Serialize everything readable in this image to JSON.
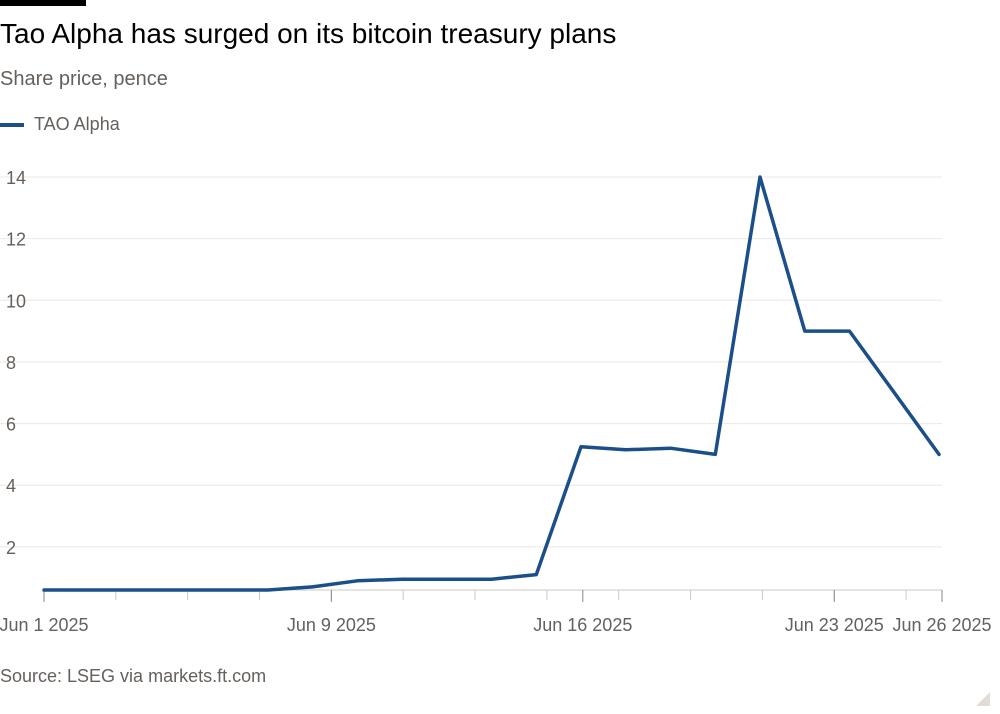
{
  "title": "Tao Alpha has surged on its bitcoin treasury plans",
  "subtitle": "Share price, pence",
  "source": "Source: LSEG via markets.ft.com",
  "colors": {
    "series": "#1b4f8a",
    "grid": "#ece7e2",
    "tick_text": "#66605c",
    "axis": "#cfc8c2"
  },
  "chart_data": {
    "type": "line",
    "title": "Tao Alpha has surged on its bitcoin treasury plans",
    "subtitle": "Share price, pence",
    "ylabel": "",
    "xlabel": "",
    "ylim": [
      0.6,
      14
    ],
    "xlim": [
      "2025-06-01",
      "2025-06-26"
    ],
    "yticks": [
      2,
      4,
      6,
      8,
      10,
      12,
      14
    ],
    "xticks": [
      {
        "date": "2025-06-01",
        "label": "Jun 1 2025"
      },
      {
        "date": "2025-06-09",
        "label": "Jun 9 2025"
      },
      {
        "date": "2025-06-16",
        "label": "Jun 16 2025"
      },
      {
        "date": "2025-06-23",
        "label": "Jun 23 2025"
      },
      {
        "date": "2025-06-26",
        "label": "Jun 26 2025"
      }
    ],
    "grid": true,
    "legend_position": "top-left",
    "series": [
      {
        "name": "TAO Alpha",
        "points": [
          {
            "x": "2025-06-02",
            "y": 0.6
          },
          {
            "x": "2025-06-03",
            "y": 0.6
          },
          {
            "x": "2025-06-04",
            "y": 0.6
          },
          {
            "x": "2025-06-05",
            "y": 0.6
          },
          {
            "x": "2025-06-06",
            "y": 0.6
          },
          {
            "x": "2025-06-09",
            "y": 0.6
          },
          {
            "x": "2025-06-10",
            "y": 0.7
          },
          {
            "x": "2025-06-11",
            "y": 0.9
          },
          {
            "x": "2025-06-12",
            "y": 0.95
          },
          {
            "x": "2025-06-13",
            "y": 0.95
          },
          {
            "x": "2025-06-16",
            "y": 0.95
          },
          {
            "x": "2025-06-17",
            "y": 1.1
          },
          {
            "x": "2025-06-18",
            "y": 5.25
          },
          {
            "x": "2025-06-19",
            "y": 5.15
          },
          {
            "x": "2025-06-20",
            "y": 5.2
          },
          {
            "x": "2025-06-23",
            "y": 5.0
          },
          {
            "x": "2025-06-24",
            "y": 14.0
          },
          {
            "x": "2025-06-25",
            "y": 9.0
          },
          {
            "x": "2025-06-26",
            "y": 9.0
          },
          {
            "x": "2025-06-27",
            "y": 7.0
          },
          {
            "x": "2025-06-30",
            "y": 5.0
          }
        ]
      }
    ]
  }
}
